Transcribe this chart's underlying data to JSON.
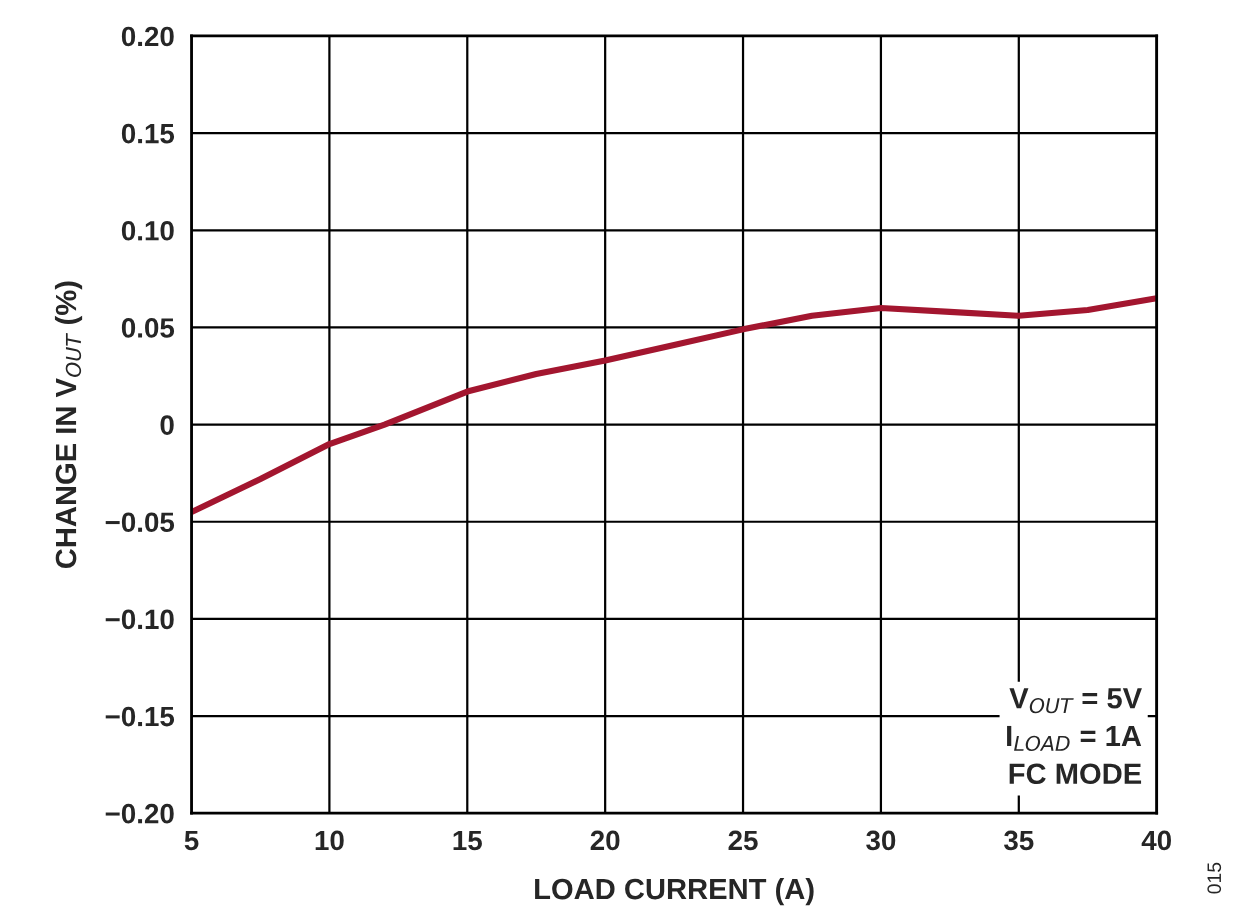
{
  "chart_data": {
    "type": "line",
    "xlabel": "LOAD CURRENT (A)",
    "ylabel": "CHANGE IN V$_{OUT}$ (%)",
    "x": [
      5,
      7.5,
      10,
      12,
      15,
      17.5,
      20,
      22.5,
      25,
      27.5,
      30,
      32.5,
      35,
      37.5,
      40
    ],
    "series": [
      {
        "color": "#a3162f",
        "values": [
          -0.045,
          -0.028,
          -0.01,
          0.0,
          0.017,
          0.026,
          0.033,
          0.041,
          0.049,
          0.056,
          0.06,
          0.058,
          0.056,
          0.059,
          0.065
        ]
      }
    ],
    "xlim": [
      5,
      40
    ],
    "xticks": [
      5,
      10,
      15,
      20,
      25,
      30,
      35,
      40
    ],
    "ylim": [
      -0.2,
      0.2
    ],
    "yticks": [
      {
        "value": -0.2,
        "label": "−0.20"
      },
      {
        "value": -0.15,
        "label": "−0.15"
      },
      {
        "value": -0.1,
        "label": "−0.10"
      },
      {
        "value": -0.05,
        "label": "−0.05"
      },
      {
        "value": 0,
        "label": "0"
      },
      {
        "value": 0.05,
        "label": "0.05"
      },
      {
        "value": 0.1,
        "label": "0.10"
      },
      {
        "value": 0.15,
        "label": "0.15"
      },
      {
        "value": 0.2,
        "label": "0.20"
      }
    ],
    "grid": true,
    "marker": "none",
    "line_style": "solid",
    "annotations": [
      "V$_{OUT}$ = 5V\nI$_{LOAD}$ = 1A\nFC MODE",
      "015"
    ]
  }
}
